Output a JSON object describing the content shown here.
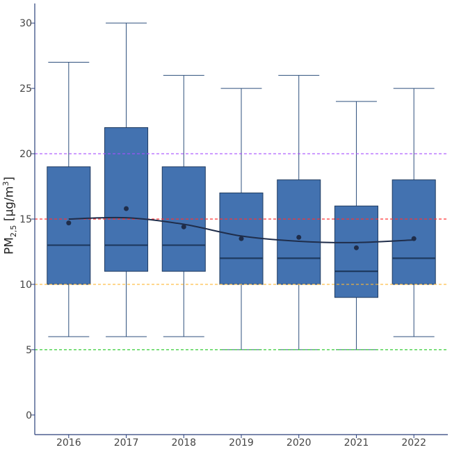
{
  "chart_data": {
    "type": "boxplot",
    "ylabel": {
      "base": "PM",
      "sub": "2,5",
      "unit_open": " [µg/m",
      "sup": "3",
      "unit_close": "]"
    },
    "xlabel": "",
    "ylim": [
      -1.5,
      31.5
    ],
    "yticks": [
      0,
      5,
      10,
      15,
      20,
      25,
      30
    ],
    "categories": [
      "2016",
      "2017",
      "2018",
      "2019",
      "2020",
      "2021",
      "2022"
    ],
    "boxes": [
      {
        "whisker_low": 6,
        "q1": 10,
        "median": 13,
        "q3": 19,
        "whisker_high": 27,
        "mean": 14.7
      },
      {
        "whisker_low": 6,
        "q1": 11,
        "median": 13,
        "q3": 22,
        "whisker_high": 30,
        "mean": 15.8
      },
      {
        "whisker_low": 6,
        "q1": 11,
        "median": 13,
        "q3": 19,
        "whisker_high": 26,
        "mean": 14.4
      },
      {
        "whisker_low": 5,
        "q1": 10,
        "median": 12,
        "q3": 17,
        "whisker_high": 25,
        "mean": 13.5
      },
      {
        "whisker_low": 5,
        "q1": 10,
        "median": 12,
        "q3": 18,
        "whisker_high": 26,
        "mean": 13.6
      },
      {
        "whisker_low": 5,
        "q1": 9,
        "median": 11,
        "q3": 16,
        "whisker_high": 24,
        "mean": 12.8
      },
      {
        "whisker_low": 6,
        "q1": 10,
        "median": 12,
        "q3": 18,
        "whisker_high": 25,
        "mean": 13.5
      }
    ],
    "trend_line": [
      15.0,
      15.1,
      14.6,
      13.7,
      13.3,
      13.2,
      13.4
    ],
    "reference_lines": [
      {
        "value": 20,
        "color": "#a64dff"
      },
      {
        "value": 15,
        "color": "#ff3333"
      },
      {
        "value": 10,
        "color": "#ffb733"
      },
      {
        "value": 5,
        "color": "#33cc33"
      }
    ],
    "colors": {
      "box_fill": "#4372b0",
      "box_stroke": "#1e3a5f",
      "whisker": "#2d4f7c",
      "axis": "#2a3f7a",
      "trend": "#1f2d4a",
      "mean_marker": "#1f2d4a"
    },
    "grid": false,
    "legend": "none"
  }
}
